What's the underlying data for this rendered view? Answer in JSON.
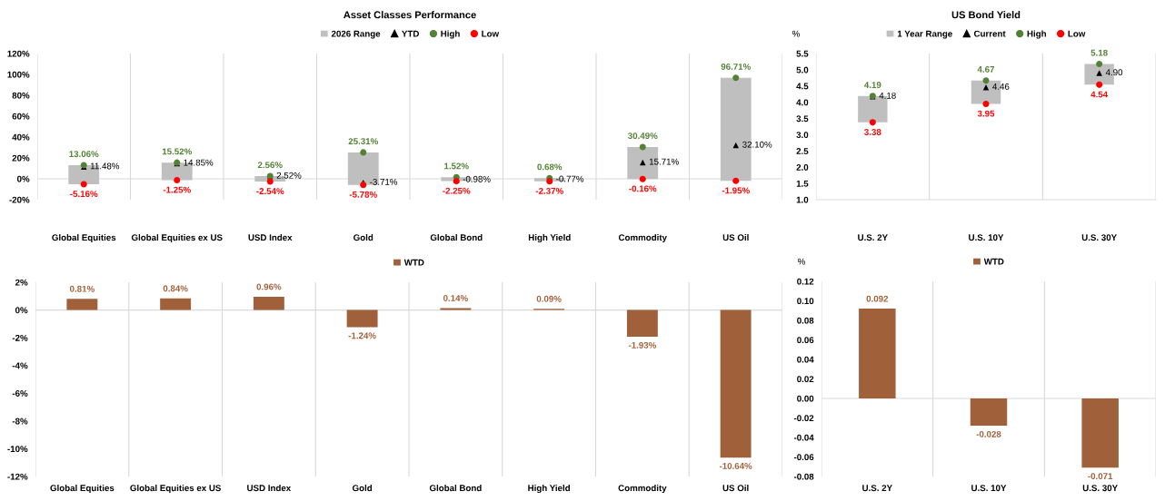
{
  "chart_data": [
    {
      "type": "bar",
      "title": "Asset Classes Performance",
      "categories": [
        "Global Equities",
        "Global Equities ex US",
        "USD Index",
        "Gold",
        "Global Bond",
        "High Yield",
        "Commodity",
        "US Oil"
      ],
      "series": [
        {
          "name": "2026 Range",
          "type": "bar",
          "color": "#bfbfbf",
          "base": [
            -5.16,
            -1.25,
            -2.54,
            -5.78,
            -2.25,
            -2.37,
            -0.16,
            -1.95
          ],
          "values": [
            18.22,
            16.77,
            5.1,
            31.09,
            3.77,
            3.05,
            30.65,
            98.66
          ]
        },
        {
          "name": "YTD",
          "type": "scatter",
          "marker": "triangle",
          "color": "#000000",
          "values": [
            11.48,
            14.85,
            2.52,
            -3.71,
            -0.98,
            -0.77,
            15.71,
            32.1
          ],
          "value_labels": [
            "11.48%",
            "14.85%",
            "2.52%",
            "-3.71%",
            "-0.98%",
            "-0.77%",
            "15.71%",
            "32.10%"
          ]
        },
        {
          "name": "High",
          "type": "scatter",
          "marker": "circle",
          "color": "#548235",
          "values": [
            13.06,
            15.52,
            2.56,
            25.31,
            1.52,
            0.68,
            30.49,
            96.71
          ],
          "value_labels": [
            "13.06%",
            "15.52%",
            "2.56%",
            "25.31%",
            "1.52%",
            "0.68%",
            "30.49%",
            "96.71%"
          ]
        },
        {
          "name": "Low",
          "type": "scatter",
          "marker": "circle",
          "color": "#ff0000",
          "values": [
            -5.16,
            -1.25,
            -2.54,
            -5.78,
            -2.25,
            -2.37,
            -0.16,
            -1.95
          ],
          "value_labels": [
            "-5.16%",
            "-1.25%",
            "-2.54%",
            "-5.78%",
            "-2.25%",
            "-2.37%",
            "-0.16%",
            "-1.95%"
          ]
        }
      ],
      "ylim": [
        -20,
        120
      ],
      "yticks": [
        {
          "value": -20,
          "label": "-20%"
        },
        {
          "value": 0,
          "label": "0%"
        },
        {
          "value": 20,
          "label": "20%"
        },
        {
          "value": 40,
          "label": "40%"
        },
        {
          "value": 60,
          "label": "60%"
        },
        {
          "value": 80,
          "label": "80%"
        },
        {
          "value": 100,
          "label": "100%"
        },
        {
          "value": 120,
          "label": "120%"
        }
      ],
      "ref_lines": [
        {
          "axis": "y",
          "value": 0,
          "color": "#d9d9d9"
        }
      ],
      "grid": "x",
      "legend": "top"
    },
    {
      "type": "bar",
      "title": "US Bond Yield",
      "ylabel": "%",
      "categories": [
        "U.S. 2Y",
        "U.S. 10Y",
        "U.S. 30Y"
      ],
      "series": [
        {
          "name": "1 Year Range",
          "type": "bar",
          "color": "#bfbfbf",
          "base": [
            3.38,
            3.95,
            4.54
          ],
          "values": [
            0.81,
            0.72,
            0.64
          ]
        },
        {
          "name": "Current",
          "type": "scatter",
          "marker": "triangle",
          "color": "#000000",
          "values": [
            4.18,
            4.46,
            4.9
          ],
          "value_labels": [
            "4.18",
            "4.46",
            "4.90"
          ]
        },
        {
          "name": "High",
          "type": "scatter",
          "marker": "circle",
          "color": "#548235",
          "values": [
            4.19,
            4.67,
            5.18
          ],
          "value_labels": [
            "4.19",
            "4.67",
            "5.18"
          ]
        },
        {
          "name": "Low",
          "type": "scatter",
          "marker": "circle",
          "color": "#ff0000",
          "values": [
            3.38,
            3.95,
            4.54
          ],
          "value_labels": [
            "3.38",
            "3.95",
            "4.54"
          ]
        }
      ],
      "ylim": [
        1.0,
        5.5
      ],
      "yticks": [
        {
          "value": 1.0,
          "label": "1.0"
        },
        {
          "value": 1.5,
          "label": "1.5"
        },
        {
          "value": 2.0,
          "label": "2.0"
        },
        {
          "value": 2.5,
          "label": "2.5"
        },
        {
          "value": 3.0,
          "label": "3.0"
        },
        {
          "value": 3.5,
          "label": "3.5"
        },
        {
          "value": 4.0,
          "label": "4.0"
        },
        {
          "value": 4.5,
          "label": "4.5"
        },
        {
          "value": 5.0,
          "label": "5.0"
        },
        {
          "value": 5.5,
          "label": "5.5"
        }
      ],
      "grid": "x",
      "legend": "top"
    },
    {
      "type": "bar",
      "categories": [
        "Global Equities",
        "Global Equities ex US",
        "USD Index",
        "Gold",
        "Global Bond",
        "High Yield",
        "Commodity",
        "US Oil"
      ],
      "series": [
        {
          "name": "WTD",
          "color": "#a0603a",
          "values": [
            0.81,
            0.84,
            0.96,
            -1.24,
            0.14,
            0.09,
            -1.93,
            -10.64
          ],
          "value_labels": [
            "0.81%",
            "0.84%",
            "0.96%",
            "-1.24%",
            "0.14%",
            "0.09%",
            "-1.93%",
            "-10.64%"
          ]
        }
      ],
      "ylim": [
        -12,
        2
      ],
      "yticks": [
        {
          "value": -12,
          "label": "-12%"
        },
        {
          "value": -10,
          "label": "-10%"
        },
        {
          "value": -8,
          "label": "-8%"
        },
        {
          "value": -6,
          "label": "-6%"
        },
        {
          "value": -4,
          "label": "-4%"
        },
        {
          "value": -2,
          "label": "-2%"
        },
        {
          "value": 0,
          "label": "0%"
        },
        {
          "value": 2,
          "label": "2%"
        }
      ],
      "ref_lines": [
        {
          "axis": "y",
          "value": 0,
          "color": "#d9d9d9"
        }
      ],
      "grid": "x",
      "legend": "top"
    },
    {
      "type": "bar",
      "ylabel": "%",
      "categories": [
        "U.S. 2Y",
        "U.S. 10Y",
        "U.S. 30Y"
      ],
      "series": [
        {
          "name": "WTD",
          "color": "#a0603a",
          "values": [
            0.092,
            -0.028,
            -0.071
          ],
          "value_labels": [
            "0.092",
            "-0.028",
            "-0.071"
          ]
        }
      ],
      "ylim": [
        -0.08,
        0.12
      ],
      "yticks": [
        {
          "value": -0.08,
          "label": "-0.08"
        },
        {
          "value": -0.06,
          "label": "-0.06"
        },
        {
          "value": -0.04,
          "label": "-0.04"
        },
        {
          "value": -0.02,
          "label": "-0.02"
        },
        {
          "value": 0.0,
          "label": "0.00"
        },
        {
          "value": 0.02,
          "label": "0.02"
        },
        {
          "value": 0.04,
          "label": "0.04"
        },
        {
          "value": 0.06,
          "label": "0.06"
        },
        {
          "value": 0.08,
          "label": "0.08"
        },
        {
          "value": 0.1,
          "label": "0.10"
        },
        {
          "value": 0.12,
          "label": "0.12"
        }
      ],
      "ref_lines": [
        {
          "axis": "y",
          "value": 0,
          "color": "#d9d9d9"
        }
      ],
      "grid": "x",
      "legend": "top"
    }
  ]
}
